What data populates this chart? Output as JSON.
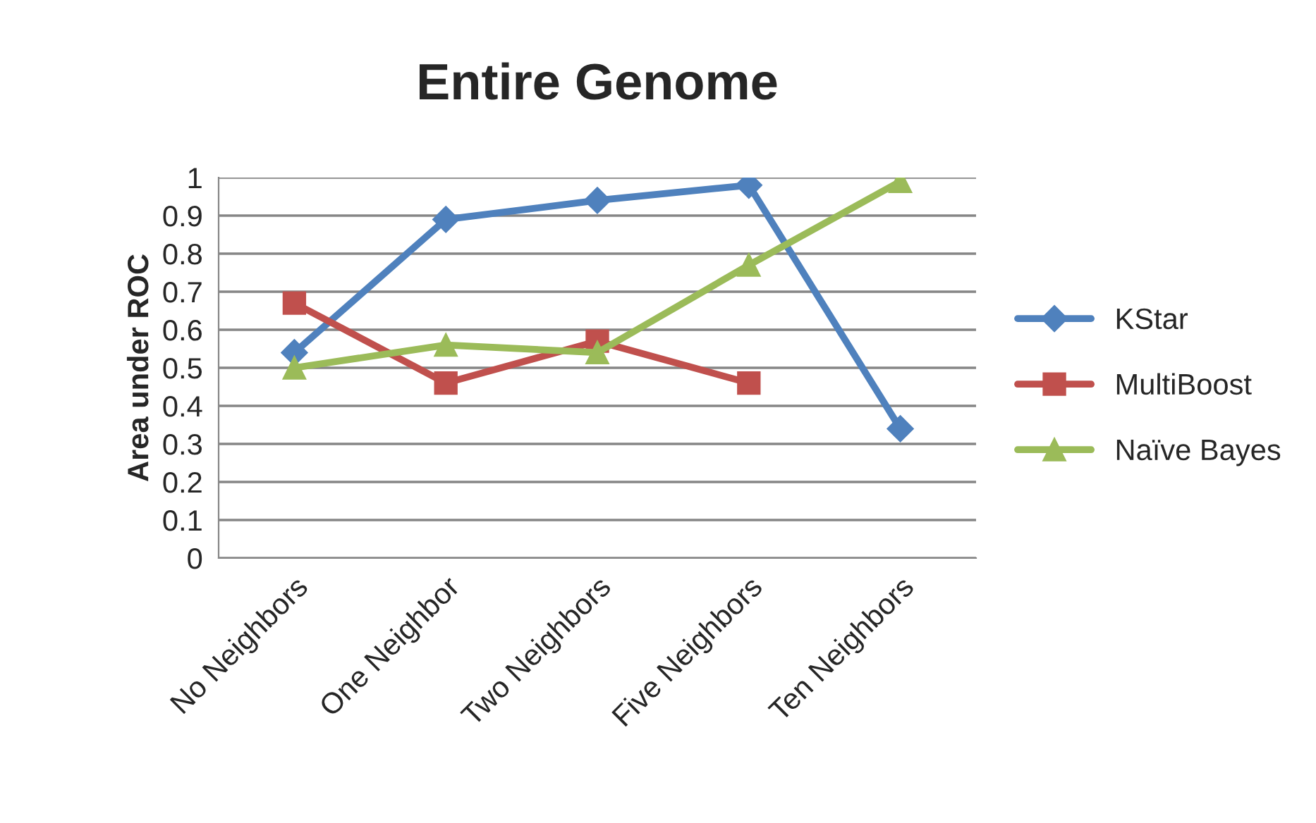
{
  "chart_data": {
    "type": "line",
    "title": "Entire Genome",
    "ylabel": "Area under ROC",
    "categories": [
      "No Neighbors",
      "One Neighbor",
      "Two Neighbors",
      "Five Neighbors",
      "Ten Neighbors"
    ],
    "series": [
      {
        "name": "KStar",
        "color": "#4f81bd",
        "marker": "diamond",
        "values": [
          0.54,
          0.89,
          0.94,
          0.98,
          0.34
        ]
      },
      {
        "name": "MultiBoost",
        "color": "#c0504d",
        "marker": "square",
        "values": [
          0.67,
          0.46,
          0.57,
          0.46,
          null
        ]
      },
      {
        "name": "Naïve Bayes",
        "color": "#9bbb59",
        "marker": "triangle",
        "values": [
          0.5,
          0.56,
          0.54,
          0.77,
          0.99
        ]
      }
    ],
    "ylim": [
      0,
      1
    ],
    "yticks": [
      0,
      0.1,
      0.2,
      0.3,
      0.4,
      0.5,
      0.6,
      0.7,
      0.8,
      0.9,
      1
    ],
    "grid": "y",
    "legend": "right",
    "line_style": "solid"
  }
}
